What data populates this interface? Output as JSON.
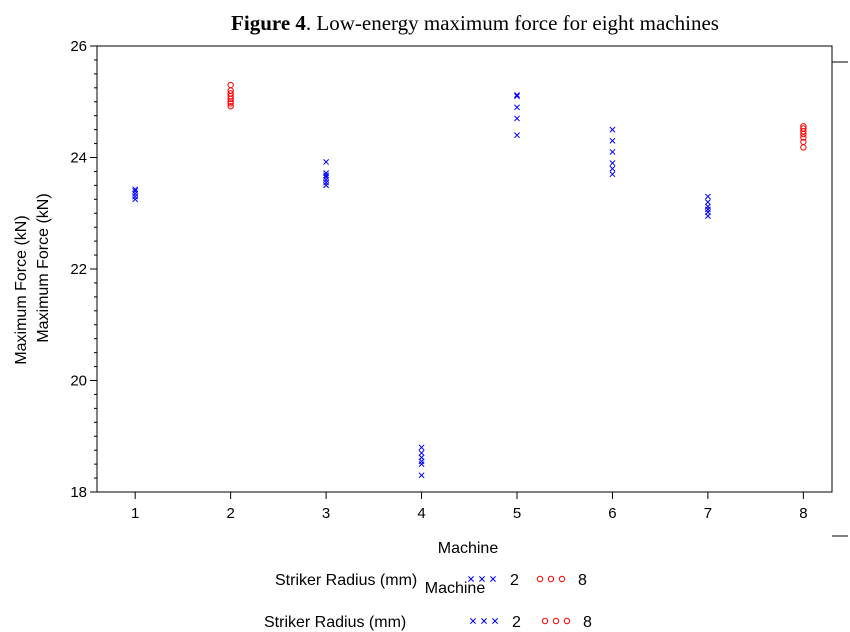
{
  "figure": {
    "number_label": "Figure 4",
    "title_rest": ".  Low-energy maximum force for eight machines"
  },
  "colors": {
    "r2": "#0000ff",
    "r8": "#ff0000",
    "axis": "#000000"
  },
  "legend": {
    "title": "Striker Radius (mm)",
    "r2_label": "2",
    "r8_label": "8"
  },
  "chart_data": {
    "type": "scatter",
    "title": "Low-energy maximum force for eight machines",
    "xlabel": "Machine",
    "ylabel": "Maximum Force (kN)",
    "x_ticks": [
      1,
      2,
      3,
      4,
      5,
      6,
      7,
      8
    ],
    "y_ticks": [
      18,
      20,
      22,
      24,
      26
    ],
    "xlim": [
      0.6,
      8.3
    ],
    "ylim": [
      18,
      26
    ],
    "legend_position": "bottom-center",
    "series": [
      {
        "name": "2",
        "marker": "x",
        "color": "#0000ff",
        "points": [
          [
            1,
            23.25
          ],
          [
            1,
            23.3
          ],
          [
            1,
            23.35
          ],
          [
            1,
            23.4
          ],
          [
            1,
            23.43
          ],
          [
            3,
            23.5
          ],
          [
            3,
            23.55
          ],
          [
            3,
            23.6
          ],
          [
            3,
            23.65
          ],
          [
            3,
            23.68
          ],
          [
            3,
            23.72
          ],
          [
            3,
            23.92
          ],
          [
            4,
            18.3
          ],
          [
            4,
            18.5
          ],
          [
            4,
            18.55
          ],
          [
            4,
            18.62
          ],
          [
            4,
            18.7
          ],
          [
            4,
            18.8
          ],
          [
            5,
            24.4
          ],
          [
            5,
            24.7
          ],
          [
            5,
            24.9
          ],
          [
            5,
            25.1
          ],
          [
            5,
            25.12
          ],
          [
            6,
            23.7
          ],
          [
            6,
            23.8
          ],
          [
            6,
            23.9
          ],
          [
            6,
            24.1
          ],
          [
            6,
            24.3
          ],
          [
            6,
            24.5
          ],
          [
            7,
            22.95
          ],
          [
            7,
            23.02
          ],
          [
            7,
            23.07
          ],
          [
            7,
            23.12
          ],
          [
            7,
            23.2
          ],
          [
            7,
            23.3
          ]
        ]
      },
      {
        "name": "8",
        "marker": "o",
        "color": "#ff0000",
        "points": [
          [
            2,
            24.92
          ],
          [
            2,
            24.97
          ],
          [
            2,
            25.0
          ],
          [
            2,
            25.05
          ],
          [
            2,
            25.1
          ],
          [
            2,
            25.15
          ],
          [
            2,
            25.2
          ],
          [
            2,
            25.3
          ],
          [
            8,
            24.18
          ],
          [
            8,
            24.28
          ],
          [
            8,
            24.36
          ],
          [
            8,
            24.42
          ],
          [
            8,
            24.47
          ],
          [
            8,
            24.52
          ],
          [
            8,
            24.56
          ]
        ]
      }
    ]
  }
}
